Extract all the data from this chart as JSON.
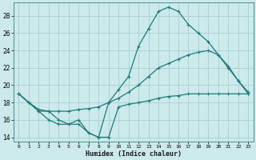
{
  "title": "",
  "xlabel": "Humidex (Indice chaleur)",
  "bg_color": "#cce9eb",
  "line_color": "#1e7b78",
  "grid_color": "#b0d8db",
  "xlim": [
    -0.5,
    23.5
  ],
  "ylim": [
    13.5,
    29.5
  ],
  "yticks": [
    14,
    16,
    18,
    20,
    22,
    24,
    26,
    28
  ],
  "xticks": [
    0,
    1,
    2,
    3,
    4,
    5,
    6,
    7,
    8,
    9,
    10,
    11,
    12,
    13,
    14,
    15,
    16,
    17,
    18,
    19,
    20,
    21,
    22,
    23
  ],
  "line1_x": [
    0,
    1,
    2,
    3,
    4,
    5,
    6,
    7,
    8,
    9,
    10,
    11,
    12,
    13,
    14,
    15,
    16,
    17,
    18,
    19,
    20,
    21,
    22,
    23
  ],
  "line1_y": [
    19.0,
    18.0,
    17.0,
    16.0,
    15.5,
    15.5,
    16.0,
    14.5,
    14.0,
    18.0,
    19.5,
    21.0,
    24.5,
    26.5,
    28.5,
    29.0,
    28.5,
    27.0,
    26.0,
    25.0,
    23.5,
    22.0,
    20.5,
    19.0
  ],
  "line2_x": [
    0,
    1,
    2,
    3,
    4,
    5,
    6,
    7,
    8,
    9,
    10,
    11,
    12,
    13,
    14,
    15,
    16,
    17,
    18,
    19,
    20,
    21,
    22,
    23
  ],
  "line2_y": [
    19.0,
    18.0,
    17.2,
    17.0,
    17.0,
    17.0,
    17.2,
    17.3,
    17.5,
    18.0,
    18.5,
    19.2,
    20.0,
    21.0,
    22.0,
    22.5,
    23.0,
    23.5,
    23.8,
    24.0,
    23.5,
    22.2,
    20.5,
    19.2
  ],
  "line3_x": [
    0,
    1,
    2,
    3,
    4,
    5,
    6,
    7,
    8,
    9,
    10,
    11,
    12,
    13,
    14,
    15,
    16,
    17,
    18,
    19,
    20,
    21,
    22,
    23
  ],
  "line3_y": [
    19.0,
    18.0,
    17.0,
    17.0,
    16.0,
    15.5,
    15.5,
    14.5,
    14.0,
    14.0,
    17.5,
    17.8,
    18.0,
    18.2,
    18.5,
    18.7,
    18.8,
    19.0,
    19.0,
    19.0,
    19.0,
    19.0,
    19.0,
    19.0
  ]
}
